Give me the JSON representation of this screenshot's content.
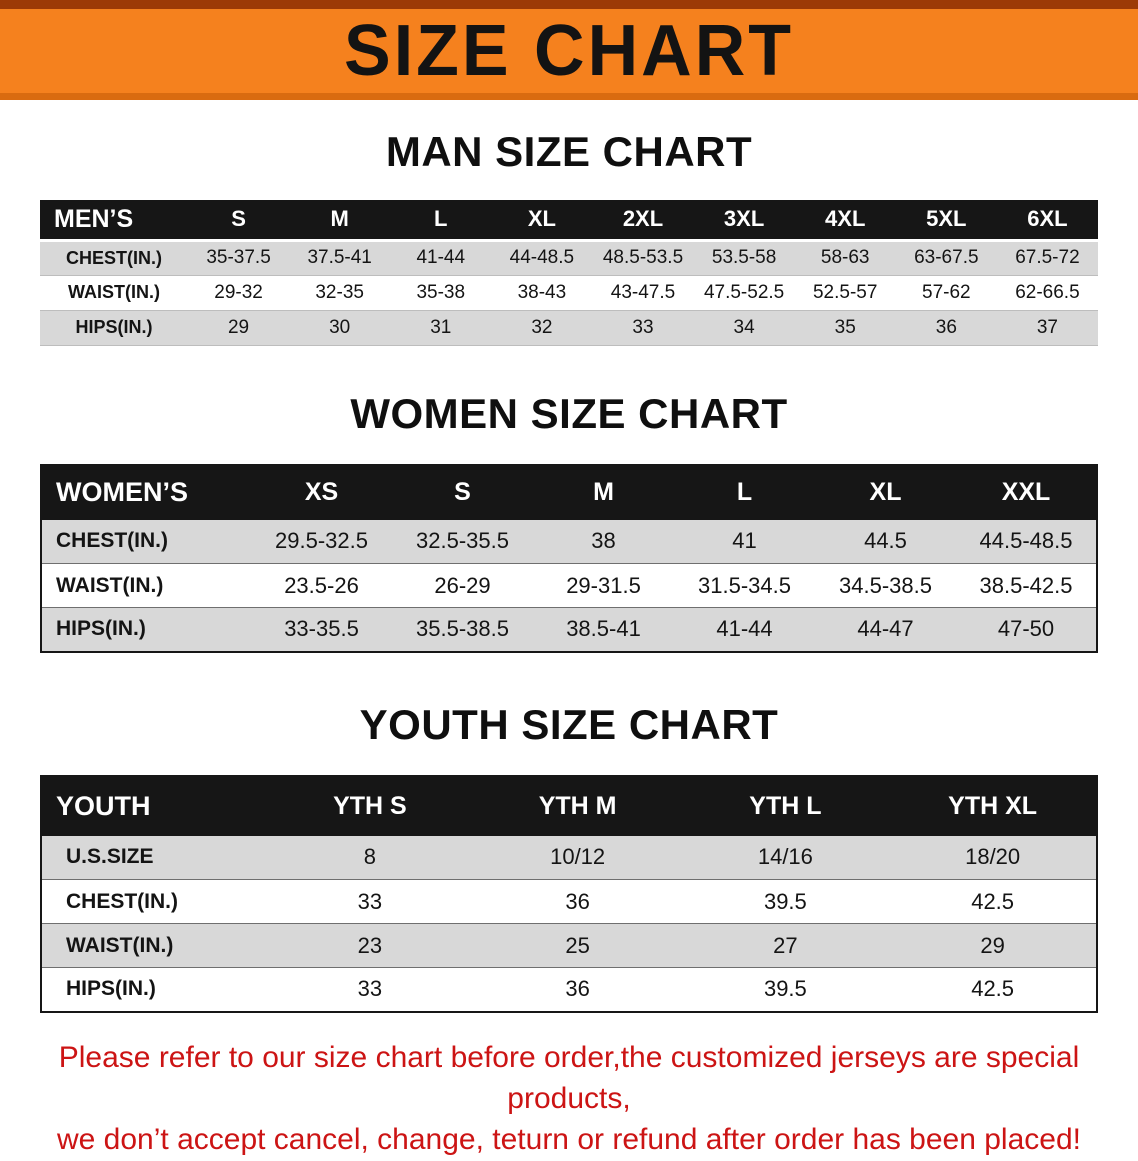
{
  "banner": {
    "title": "SIZE CHART"
  },
  "colors": {
    "banner_orange": "#F5811E",
    "banner_dark": "#9C3A06",
    "banner_edge": "#D96B10",
    "header_bg": "#161616",
    "header_text": "#FFFFFF",
    "stripe": "#D8D8D8",
    "text": "#141414",
    "footer_red": "#CC1414"
  },
  "sections": {
    "men": {
      "heading": "MAN SIZE CHART",
      "table": {
        "header": [
          "MEN’S",
          "S",
          "M",
          "L",
          "XL",
          "2XL",
          "3XL",
          "4XL",
          "5XL",
          "6XL"
        ],
        "rows": [
          [
            "CHEST(IN.)",
            "35-37.5",
            "37.5-41",
            "41-44",
            "44-48.5",
            "48.5-53.5",
            "53.5-58",
            "58-63",
            "63-67.5",
            "67.5-72"
          ],
          [
            "WAIST(IN.)",
            "29-32",
            "32-35",
            "35-38",
            "38-43",
            "43-47.5",
            "47.5-52.5",
            "52.5-57",
            "57-62",
            "62-66.5"
          ],
          [
            "HIPS(IN.)",
            "29",
            "30",
            "31",
            "32",
            "33",
            "34",
            "35",
            "36",
            "37"
          ]
        ]
      }
    },
    "women": {
      "heading": "WOMEN SIZE CHART",
      "table": {
        "header": [
          "WOMEN’S",
          "XS",
          "S",
          "M",
          "L",
          "XL",
          "XXL"
        ],
        "rows": [
          [
            "CHEST(IN.)",
            "29.5-32.5",
            "32.5-35.5",
            "38",
            "41",
            "44.5",
            "44.5-48.5"
          ],
          [
            "WAIST(IN.)",
            "23.5-26",
            "26-29",
            "29-31.5",
            "31.5-34.5",
            "34.5-38.5",
            "38.5-42.5"
          ],
          [
            "HIPS(IN.)",
            "33-35.5",
            "35.5-38.5",
            "38.5-41",
            "41-44",
            "44-47",
            "47-50"
          ]
        ]
      }
    },
    "youth": {
      "heading": "YOUTH SIZE CHART",
      "table": {
        "header": [
          "YOUTH",
          "YTH S",
          "YTH M",
          "YTH L",
          "YTH XL"
        ],
        "rows": [
          [
            "U.S.SIZE",
            "8",
            "10/12",
            "14/16",
            "18/20"
          ],
          [
            "CHEST(IN.)",
            "33",
            "36",
            "39.5",
            "42.5"
          ],
          [
            "WAIST(IN.)",
            "23",
            "25",
            "27",
            "29"
          ],
          [
            "HIPS(IN.)",
            "33",
            "36",
            "39.5",
            "42.5"
          ]
        ]
      }
    }
  },
  "footer": {
    "line1": "Please refer to our size chart before order,the customized jerseys are special products,",
    "line2": "we don’t accept cancel, change, teturn or refund after order has been placed!"
  }
}
